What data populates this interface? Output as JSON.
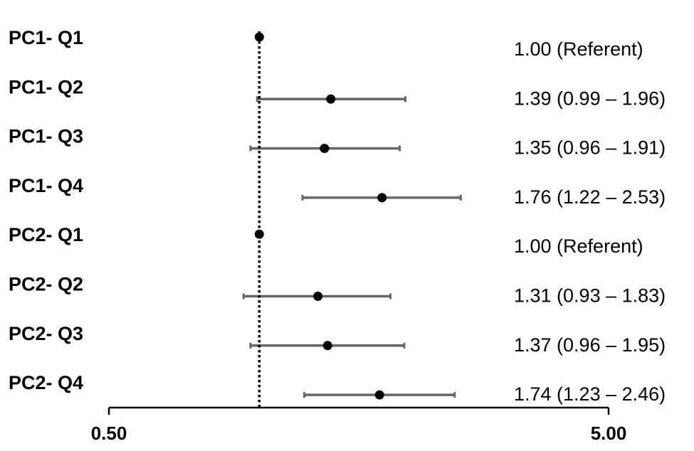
{
  "chart_data": {
    "type": "forest",
    "axis": {
      "scale": "log",
      "xlim": [
        0.5,
        5.0
      ],
      "tick_values": [
        0.5,
        5.0
      ],
      "tick_labels": [
        "0.50",
        "5.00"
      ]
    },
    "reference_line": {
      "value": 1.0,
      "style": "dotted"
    },
    "rows": [
      {
        "label": "PC1- Q1",
        "estimate": 1.0,
        "lower": null,
        "upper": null,
        "text": "1.00 (Referent)"
      },
      {
        "label": "PC1- Q2",
        "estimate": 1.39,
        "lower": 0.99,
        "upper": 1.96,
        "text": "1.39 (0.99 – 1.96)"
      },
      {
        "label": "PC1- Q3",
        "estimate": 1.35,
        "lower": 0.96,
        "upper": 1.91,
        "text": "1.35 (0.96 – 1.91)"
      },
      {
        "label": "PC1- Q4",
        "estimate": 1.76,
        "lower": 1.22,
        "upper": 2.53,
        "text": "1.76 (1.22 – 2.53)"
      },
      {
        "label": "PC2- Q1",
        "estimate": 1.0,
        "lower": null,
        "upper": null,
        "text": "1.00 (Referent)"
      },
      {
        "label": "PC2- Q2",
        "estimate": 1.31,
        "lower": 0.93,
        "upper": 1.83,
        "text": "1.31 (0.93 – 1.83)"
      },
      {
        "label": "PC2- Q3",
        "estimate": 1.37,
        "lower": 0.96,
        "upper": 1.95,
        "text": "1.37 (0.96 – 1.95)"
      },
      {
        "label": "PC2- Q4",
        "estimate": 1.74,
        "lower": 1.23,
        "upper": 2.46,
        "text": "1.74 (1.23 – 2.46)"
      }
    ],
    "colors": {
      "point": "#000000",
      "ci_line": "#666666",
      "axis": "#000000",
      "reference": "#000000"
    }
  }
}
